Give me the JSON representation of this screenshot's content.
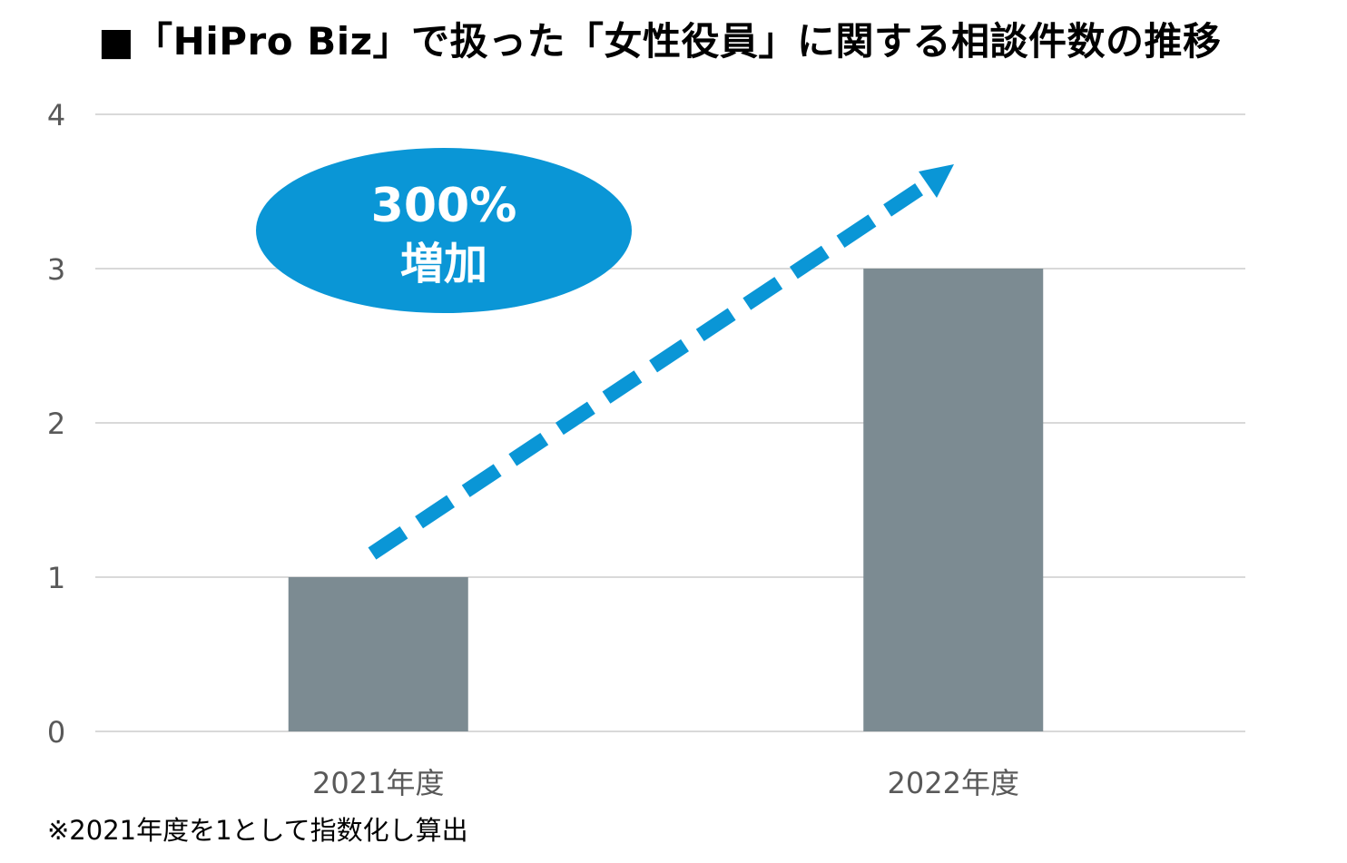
{
  "chart_data": {
    "type": "bar",
    "title": "■「HiPro Biz」で扱った「女性役員」に関する相談件数の推移",
    "categories": [
      "2021年度",
      "2022年度"
    ],
    "values": [
      1,
      3
    ],
    "ylim": [
      0,
      4
    ],
    "yticks": [
      0,
      1,
      2,
      3,
      4
    ],
    "xlabel": "",
    "ylabel": "",
    "grid": true,
    "legend": "none",
    "bar_color": "#7c8b92",
    "annotation": {
      "line1": "300%",
      "line2": "増加",
      "color": "#0a96d6",
      "arrow_color": "#0a96d6"
    },
    "footnote": "※2021年度を1として指数化し算出"
  }
}
